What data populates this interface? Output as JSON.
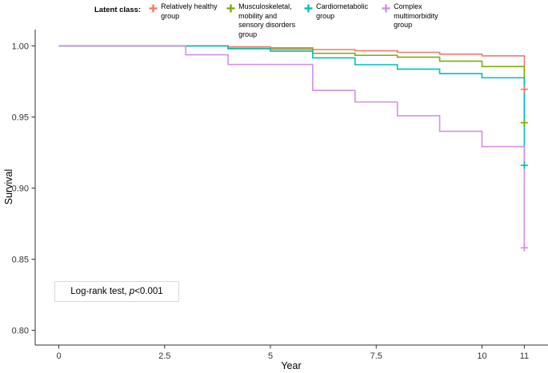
{
  "legend": {
    "title": "Latent class:",
    "items": [
      {
        "label": "Relatively healthy group",
        "color": "#F8766D"
      },
      {
        "label": "Musculoskeletal, mobility and sensory disorders group",
        "color": "#7CAE00"
      },
      {
        "label": "Cardiometabolic group",
        "color": "#00BFC4"
      },
      {
        "label": "Complex multimorbidity group",
        "color": "#D48FE4"
      }
    ]
  },
  "annotation": {
    "prefix": "Log-rank test, ",
    "stat_symbol": "p",
    "stat_value": "<0.001"
  },
  "chart_data": {
    "type": "line",
    "subtype": "kaplan-meier-step",
    "title": "",
    "xlabel": "Year",
    "ylabel": "Survival",
    "xlim": [
      0,
      11
    ],
    "ylim": [
      0.8,
      1.0
    ],
    "grid": false,
    "legend_position": "top",
    "x_ticks": [
      0,
      2.5,
      5,
      7.5,
      10,
      11
    ],
    "x_tick_labels": [
      "0",
      "2.5",
      "5",
      "7.5",
      "10",
      "11"
    ],
    "y_ticks": [
      1.0,
      0.95,
      0.9,
      0.85,
      0.8
    ],
    "y_tick_labels": [
      "1.00",
      "0.95",
      "0.90",
      "0.85",
      "0.80"
    ],
    "axis_color": "#333333",
    "series": [
      {
        "name": "Relatively healthy group",
        "color": "#F8766D",
        "steps": [
          [
            0,
            1.0
          ],
          [
            4,
            0.9994
          ],
          [
            5,
            0.9987
          ],
          [
            6,
            0.9974
          ],
          [
            7,
            0.9966
          ],
          [
            8,
            0.9955
          ],
          [
            9,
            0.9942
          ],
          [
            10,
            0.993
          ],
          [
            11,
            0.9695
          ]
        ],
        "censor_marks": [
          [
            11,
            0.9695
          ]
        ]
      },
      {
        "name": "Musculoskeletal, mobility and sensory disorders group",
        "color": "#7CAE00",
        "steps": [
          [
            0,
            1.0
          ],
          [
            4,
            0.9983
          ],
          [
            5,
            0.9977
          ],
          [
            6,
            0.9948
          ],
          [
            7,
            0.9934
          ],
          [
            8,
            0.9921
          ],
          [
            9,
            0.9893
          ],
          [
            10,
            0.9855
          ],
          [
            11,
            0.946
          ]
        ],
        "censor_marks": [
          [
            11,
            0.946
          ]
        ]
      },
      {
        "name": "Cardiometabolic group",
        "color": "#00BFC4",
        "steps": [
          [
            0,
            1.0
          ],
          [
            4,
            0.998
          ],
          [
            5,
            0.9963
          ],
          [
            6,
            0.9916
          ],
          [
            7,
            0.9868
          ],
          [
            8,
            0.9837
          ],
          [
            9,
            0.9805
          ],
          [
            10,
            0.9776
          ],
          [
            11,
            0.916
          ]
        ],
        "censor_marks": [
          [
            11,
            0.916
          ]
        ]
      },
      {
        "name": "Complex multimorbidity group",
        "color": "#D48FE4",
        "steps": [
          [
            0,
            1.0
          ],
          [
            3,
            0.9938
          ],
          [
            4,
            0.987
          ],
          [
            6,
            0.9687
          ],
          [
            7,
            0.9606
          ],
          [
            8,
            0.9509
          ],
          [
            9,
            0.9399
          ],
          [
            10,
            0.9292
          ],
          [
            11,
            0.858
          ]
        ],
        "censor_marks": [
          [
            11,
            0.858
          ]
        ]
      }
    ]
  }
}
